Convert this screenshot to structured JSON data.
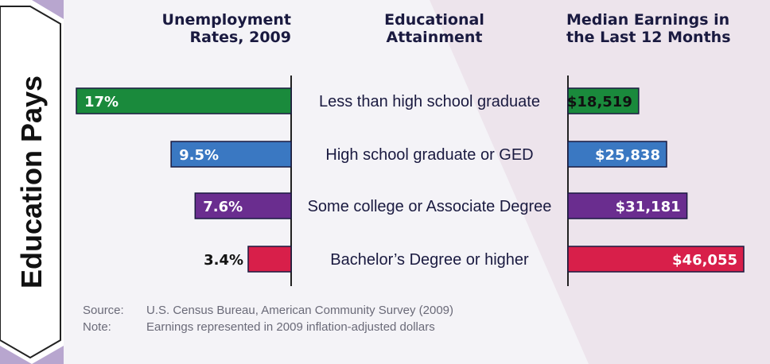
{
  "side_title": "Education Pays",
  "headers": {
    "unemployment": [
      "Unemployment",
      "Rates, 2009"
    ],
    "education": [
      "Educational",
      "Attainment"
    ],
    "earnings": [
      "Median Earnings in",
      "the Last 12 Months"
    ]
  },
  "chart_data": {
    "type": "bar",
    "categories": [
      "Less than high school graduate",
      "High school graduate or GED",
      "Some college or Associate Degree",
      "Bachelor’s Degree or higher"
    ],
    "series": [
      {
        "name": "Unemployment Rates, 2009",
        "values": [
          17,
          9.5,
          7.6,
          3.4
        ],
        "labels": [
          "17%",
          "9.5%",
          "7.6%",
          "3.4%"
        ]
      },
      {
        "name": "Median Earnings in the Last 12 Months",
        "values": [
          18519,
          25838,
          31181,
          46055
        ],
        "labels": [
          "$18,519",
          "$25,838",
          "$31,181",
          "$46,055"
        ]
      }
    ],
    "bar_colors": [
      "#1a8a3c",
      "#3a78c2",
      "#6a2d8f",
      "#d81f4a"
    ]
  },
  "footer": {
    "source_label": "Source:",
    "source_text": "U.S. Census Bureau, American Community Survey (2009)",
    "note_label": "Note:",
    "note_text": "Earnings represented in 2009 inflation-adjusted dollars"
  }
}
